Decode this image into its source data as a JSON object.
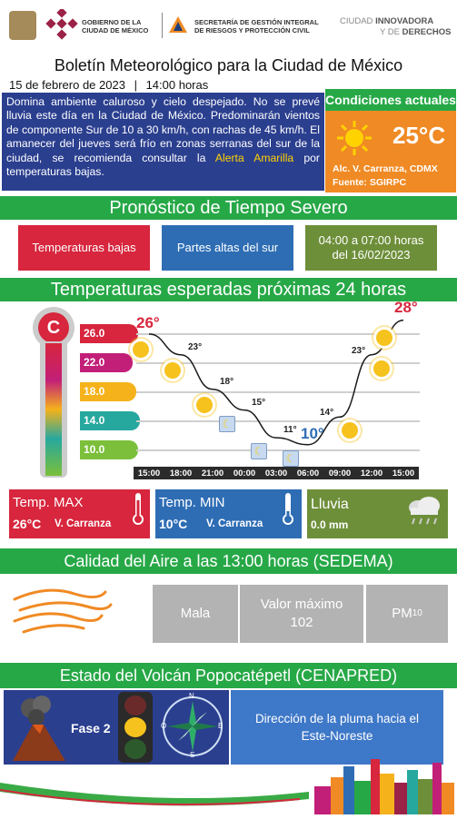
{
  "header": {
    "gov_line1": "GOBIERNO DE LA",
    "gov_line2": "CIUDAD DE MÉXICO",
    "sec_line1": "SECRETARÍA DE GESTIÓN INTEGRAL",
    "sec_line2": "DE RIESGOS Y PROTECCIÓN CIVIL",
    "ciudad_line1_a": "CIUDAD ",
    "ciudad_line1_b": "INNOVADORA",
    "ciudad_line2_a": "Y DE ",
    "ciudad_line2_b": "DERECHOS"
  },
  "title": "Boletín Meteorológico para la Ciudad de México",
  "date": "15 de febrero de 2023",
  "separator": "|",
  "time": "14:00 horas",
  "summary": {
    "text_a": "Domina ambiente caluroso y cielo despejado. No se prevé lluvia este día en la Ciudad de México. Predominarán vientos de componente Sur de 10 a 30 km/h, con rachas de 45 km/h. El amanecer del jueves será frío en zonas serranas del sur de la ciudad, se recomienda consultar la ",
    "alert": "Alerta Amarilla",
    "text_b": " por temperaturas bajas."
  },
  "current": {
    "heading": "Condiciones actuales",
    "temp": "25°C",
    "location": "Alc. V. Carranza, CDMX",
    "source": "Fuente: SGIRPC"
  },
  "severe": {
    "heading": "Pronóstico de Tiempo Severo",
    "pill1": "Temperaturas bajas",
    "pill2": "Partes altas del sur",
    "pill3": "04:00 a 07:00 horas del 16/02/2023"
  },
  "forecast": {
    "heading": "Temperaturas esperadas próximas 24 horas",
    "thermometer_letter": "C",
    "scale": [
      "26.0",
      "22.0",
      "18.0",
      "14.0",
      "10.0"
    ],
    "max_label": "26°",
    "min_label": "10°",
    "end_label": "28°"
  },
  "chart_data": {
    "type": "line",
    "x": [
      "15:00",
      "18:00",
      "21:00",
      "00:00",
      "03:00",
      "06:00",
      "09:00",
      "12:00",
      "15:00"
    ],
    "values": [
      26,
      23,
      18,
      15,
      11,
      10,
      14,
      23,
      28
    ],
    "labels": [
      "26°",
      "23°",
      "18°",
      "15°",
      "11°",
      "10°",
      "14°",
      "23°",
      "28°"
    ],
    "icons": [
      "sun-icon",
      "sun-icon",
      "sun-icon",
      "moon-icon",
      "moon-icon",
      "moon-icon",
      "sun-icon",
      "sun-icon",
      "sun-icon"
    ],
    "ylim": [
      8,
      29
    ],
    "grid": true,
    "colors": {
      "line": "#1a1a1a",
      "max_label": "#d7263d",
      "min_label": "#2e6db4"
    }
  },
  "stats": {
    "max_title": "Temp. MAX",
    "max_value": "26°C",
    "max_loc": "V. Carranza",
    "min_title": "Temp. MIN",
    "min_value": "10°C",
    "min_loc": "V. Carranza",
    "rain_title": "Lluvia",
    "rain_value": "0.0 mm"
  },
  "air": {
    "heading": "Calidad del Aire a las 13:00 horas (SEDEMA)",
    "quality": "Mala",
    "max_title": "Valor máximo",
    "max_value": "102",
    "pollutant": "PM",
    "pollutant_sub": "10"
  },
  "volcano": {
    "heading": "Estado del Volcán Popocatépetl (CENAPRED)",
    "phase": "Fase 2",
    "compass_n": "N",
    "compass_e": "E",
    "compass_s": "S",
    "compass_w": "O",
    "plume": "Dirección de la pluma hacia el Este-Noreste"
  },
  "colors": {
    "green": "#27a847",
    "red": "#d7263d",
    "blue": "#2e6db4",
    "orange": "#f08a24",
    "navy": "#2b3f8f",
    "olive": "#6e8f3a"
  }
}
